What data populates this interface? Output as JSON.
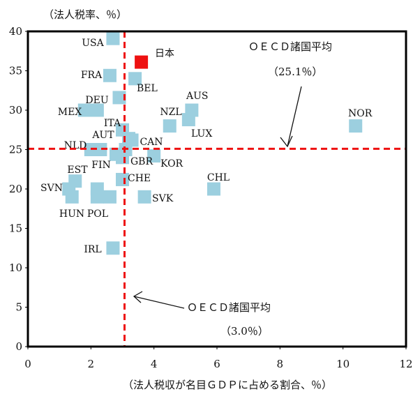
{
  "chart_data": {
    "type": "scatter",
    "y_axis_title": "（法人税率、％）",
    "x_axis_title": "（法人税収が名目ＧＤＰに占める割合、％）",
    "xlim": [
      0,
      12
    ],
    "ylim": [
      0,
      40
    ],
    "x_ticks": [
      0,
      2,
      4,
      6,
      8,
      10,
      12
    ],
    "y_ticks": [
      0,
      5,
      10,
      15,
      20,
      25,
      30,
      35,
      40
    ],
    "grid": false,
    "colors": {
      "marker": "#9ccfdf",
      "highlight": "#ee1111",
      "reference_line": "#ee1111",
      "frame": "#000000"
    },
    "points": [
      {
        "label": "USA",
        "x": 2.7,
        "y": 39.1
      },
      {
        "label": "日本",
        "x": 3.6,
        "y": 36.1,
        "highlight": true
      },
      {
        "label": "FRA",
        "x": 2.6,
        "y": 34.4
      },
      {
        "label": "BEL",
        "x": 3.4,
        "y": 34.0
      },
      {
        "label": "DEU",
        "x": 2.9,
        "y": 31.6
      },
      {
        "label": "AUS",
        "x": 5.2,
        "y": 30.0
      },
      {
        "label": "MEX",
        "x": 1.8,
        "y": 30.0
      },
      {
        "label": "MEX",
        "x": 2.2,
        "y": 30.0
      },
      {
        "label": "NZL",
        "x": 4.5,
        "y": 28.0
      },
      {
        "label": "LUX",
        "x": 5.1,
        "y": 28.8
      },
      {
        "label": "NOR",
        "x": 10.4,
        "y": 28.0
      },
      {
        "label": "ITA",
        "x": 3.0,
        "y": 27.5
      },
      {
        "label": "AUT",
        "x": 3.1,
        "y": 25.0
      },
      {
        "label": "NLD",
        "x": 2.0,
        "y": 25.0
      },
      {
        "label": "NLD",
        "x": 2.3,
        "y": 25.0
      },
      {
        "label": "ITA",
        "x": 3.2,
        "y": 26.4
      },
      {
        "label": "CAN",
        "x": 3.3,
        "y": 26.2
      },
      {
        "label": "FIN",
        "x": 2.8,
        "y": 24.4
      },
      {
        "label": "GBR",
        "x": 3.0,
        "y": 24.0
      },
      {
        "label": "KOR",
        "x": 4.0,
        "y": 24.2
      },
      {
        "label": "EST",
        "x": 1.5,
        "y": 21.0
      },
      {
        "label": "CHE",
        "x": 3.0,
        "y": 21.2
      },
      {
        "label": "CHL",
        "x": 5.9,
        "y": 20.0
      },
      {
        "label": "SVN",
        "x": 1.3,
        "y": 20.0
      },
      {
        "label": "HUN",
        "x": 1.4,
        "y": 19.0
      },
      {
        "label": "POL",
        "x": 2.2,
        "y": 20.0
      },
      {
        "label": "POL",
        "x": 2.2,
        "y": 19.0
      },
      {
        "label": "POL",
        "x": 2.6,
        "y": 19.0
      },
      {
        "label": "SVK",
        "x": 3.7,
        "y": 19.0
      },
      {
        "label": "IRL",
        "x": 2.7,
        "y": 12.5
      }
    ],
    "reference_lines": [
      {
        "axis": "y",
        "value": 25.1
      },
      {
        "axis": "x",
        "value": 3.0
      }
    ],
    "annotations": [
      {
        "line1": "ＯＥＣＤ諸国平均",
        "line2": "（25.1％）"
      },
      {
        "line1": "ＯＥＣＤ諸国平均",
        "line2": "（3.0％）"
      }
    ]
  }
}
